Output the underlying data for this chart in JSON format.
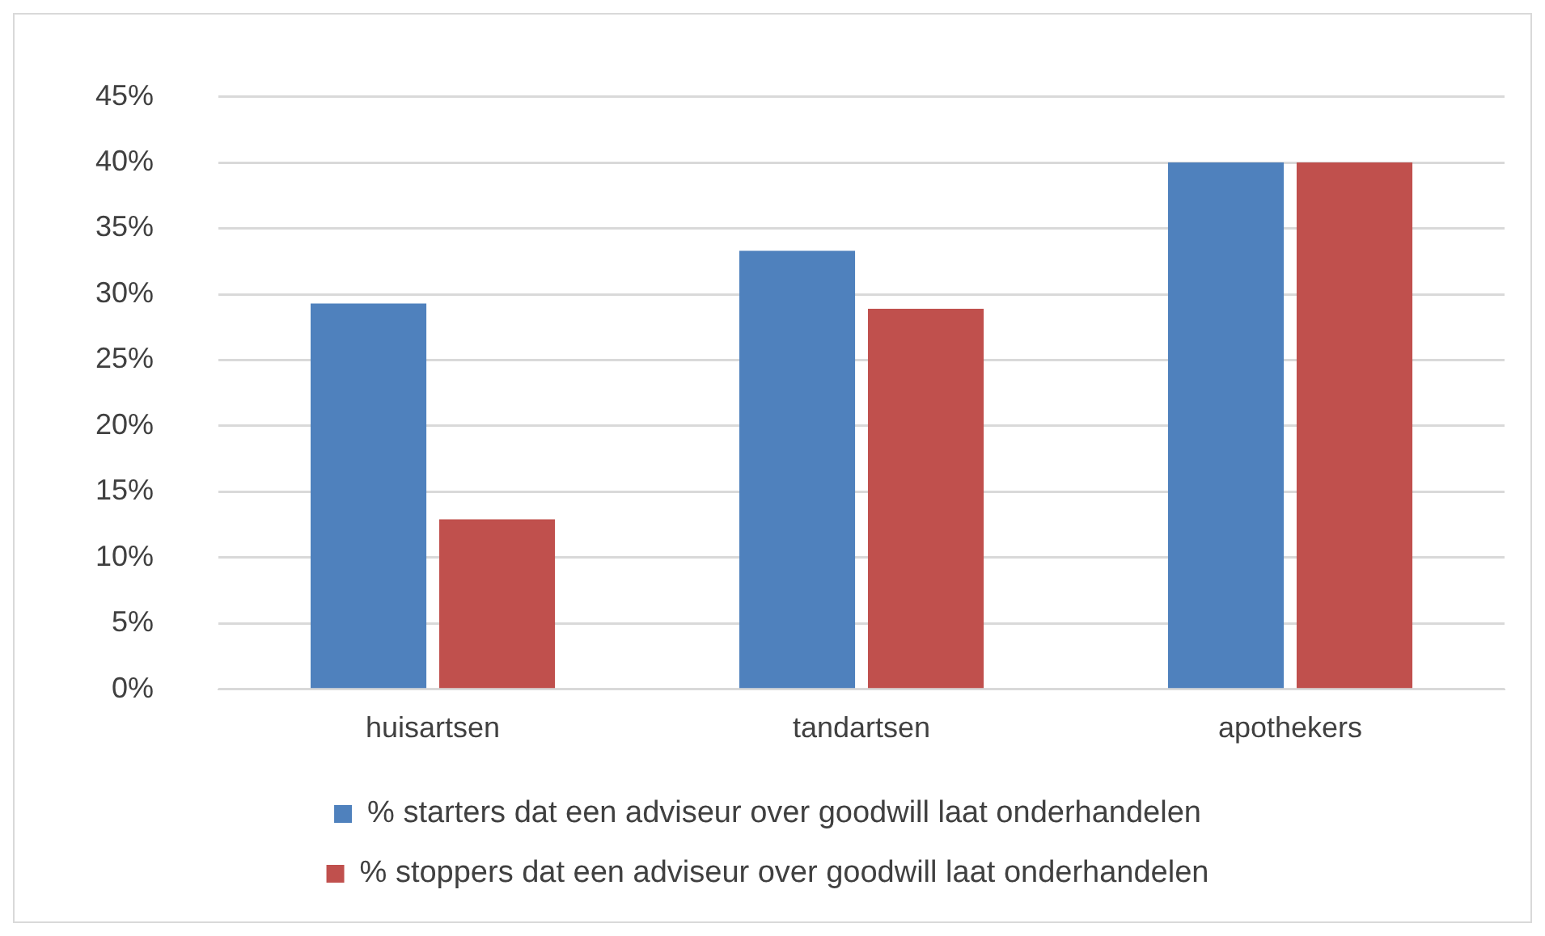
{
  "chart_data": {
    "type": "bar",
    "categories": [
      "huisartsen",
      "tandartsen",
      "apothekers"
    ],
    "series": [
      {
        "name": "% starters dat een adviseur over goodwill laat onderhandelen",
        "color": "#4f81bd",
        "values": [
          29.3,
          33.3,
          40
        ]
      },
      {
        "name": "% stoppers dat een adviseur over goodwill laat onderhandelen",
        "color": "#c0504d",
        "values": [
          12.9,
          28.9,
          40
        ]
      }
    ],
    "ylim": [
      0,
      45
    ],
    "yticks": [
      {
        "value": 0,
        "label": "0%"
      },
      {
        "value": 5,
        "label": "5%"
      },
      {
        "value": 10,
        "label": "10%"
      },
      {
        "value": 15,
        "label": "15%"
      },
      {
        "value": 20,
        "label": "20%"
      },
      {
        "value": 25,
        "label": "25%"
      },
      {
        "value": 30,
        "label": "30%"
      },
      {
        "value": 35,
        "label": "35%"
      },
      {
        "value": 40,
        "label": "40%"
      },
      {
        "value": 45,
        "label": "45%"
      }
    ],
    "grid": "y",
    "legend": "bottom"
  }
}
